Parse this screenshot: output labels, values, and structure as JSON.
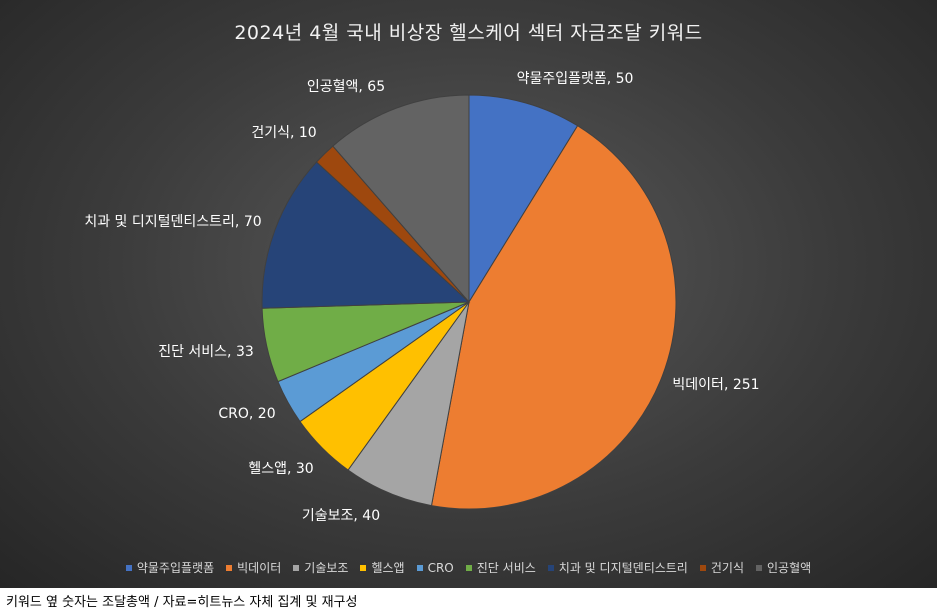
{
  "chart_data": {
    "type": "pie",
    "title": "2024년 4월 국내 비상장 헬스케어 섹터 자금조달 키워드",
    "categories": [
      "약물주입플랫폼",
      "빅데이터",
      "기술보조",
      "헬스앱",
      "CRO",
      "진단 서비스",
      "치과 및 디지털덴티스트리",
      "건기식",
      "인공혈액"
    ],
    "values": [
      50,
      251,
      40,
      30,
      20,
      33,
      70,
      10,
      65
    ],
    "data_labels": [
      "약물주입플랫폼, 50",
      "빅데이터, 251",
      "기술보조, 40",
      "헬스앱, 30",
      "CRO, 20",
      "진단 서비스, 33",
      "치과 및 디지털덴티스트리, 70",
      "건기식, 10",
      "인공혈액, 65"
    ],
    "colors": [
      "#4472c4",
      "#ed7d31",
      "#a5a5a5",
      "#ffc000",
      "#5b9bd5",
      "#70ad47",
      "#264478",
      "#9e480e",
      "#636363"
    ],
    "legend_position": "bottom"
  },
  "footnote": "키워드 옆 숫자는 조달총액 / 자료=히트뉴스 자체 집계 및 재구성"
}
